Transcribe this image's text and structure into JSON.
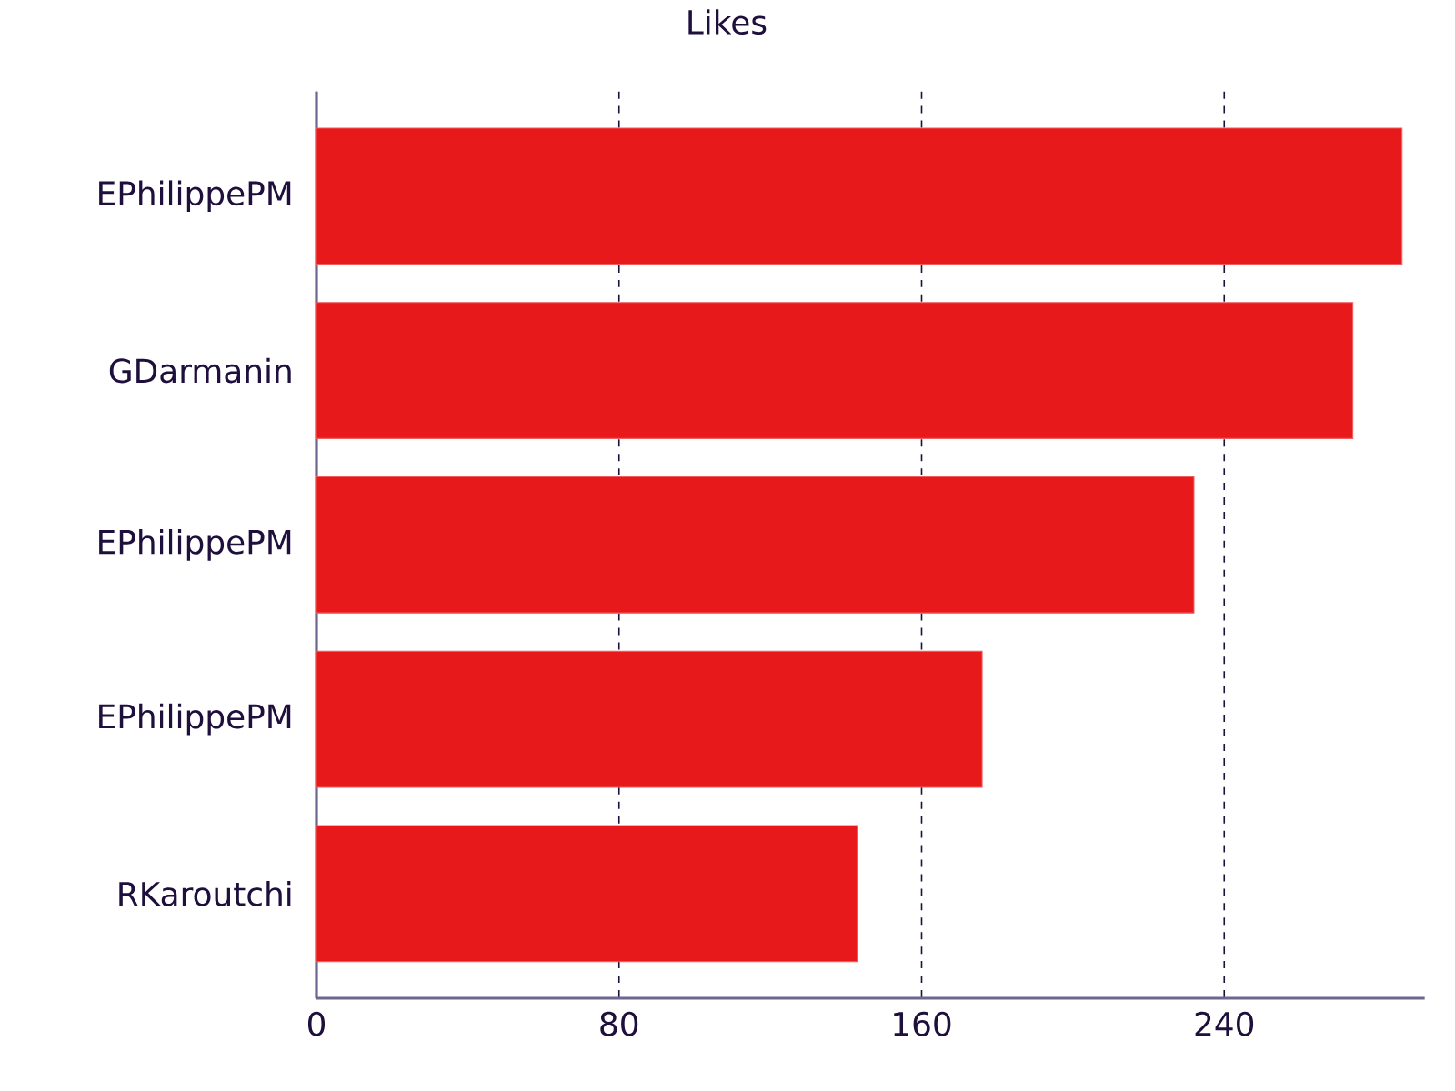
{
  "chart_data": {
    "type": "bar",
    "orientation": "horizontal",
    "title": "Likes",
    "categories": [
      "EPhilippePM",
      "GDarmanin",
      "EPhilippePM",
      "EPhilippePM",
      "RKaroutchi"
    ],
    "values": [
      287,
      274,
      232,
      176,
      143
    ],
    "color": "#e8191a",
    "xlim": [
      0,
      293
    ],
    "xticks": [
      0,
      80,
      160,
      240
    ],
    "grid": "x"
  }
}
